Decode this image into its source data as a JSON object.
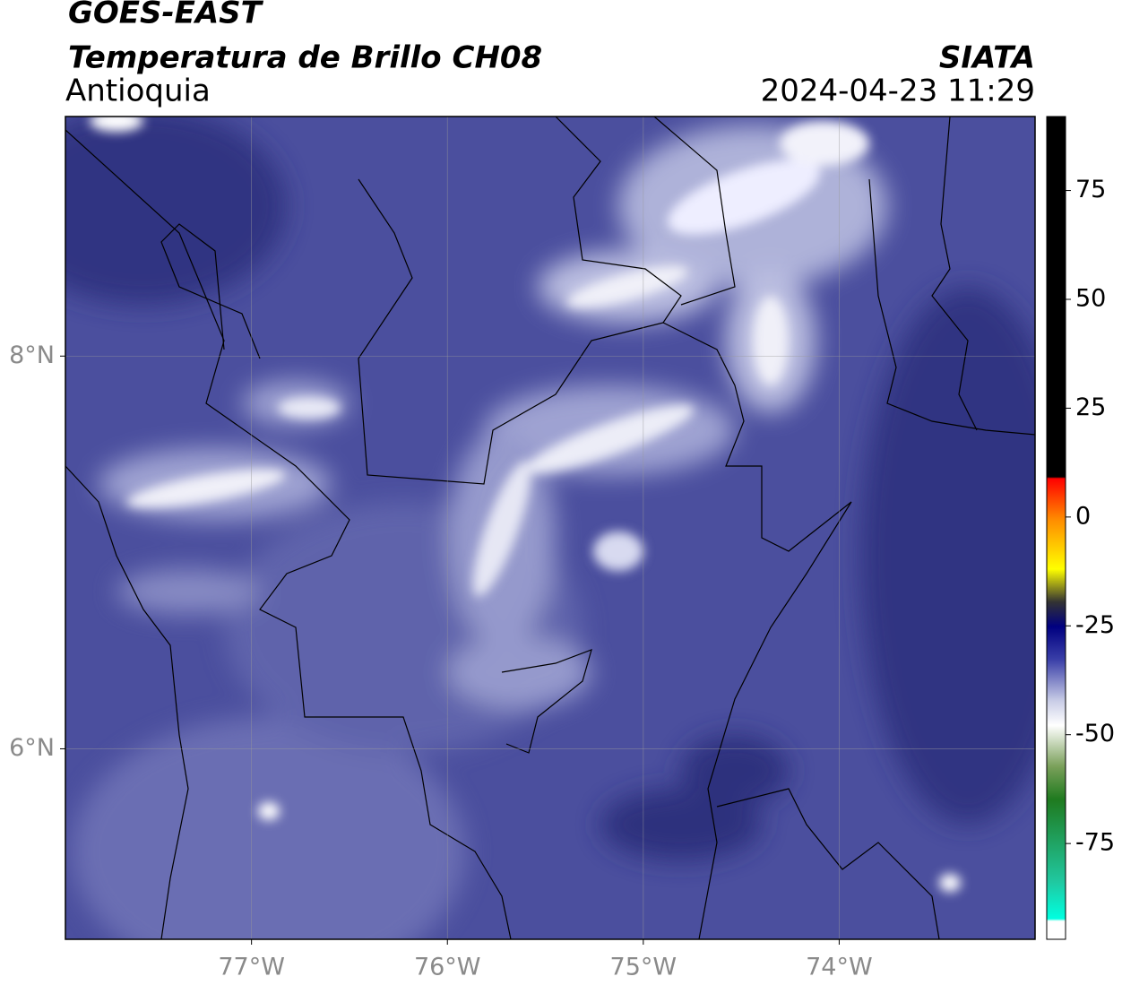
{
  "header": {
    "title": "GOES-EAST",
    "subtitle": "Temperatura de Brillo CH08",
    "region": "Antioquia",
    "agency": "SIATA",
    "timestamp": "2024-04-23 11:29"
  },
  "map": {
    "xlim": [
      -77.95,
      -73
    ],
    "ylim": [
      5.03,
      9.22
    ],
    "xticks": [
      {
        "value": -77,
        "label": "77°W"
      },
      {
        "value": -76,
        "label": "76°W"
      },
      {
        "value": -75,
        "label": "75°W"
      },
      {
        "value": -74,
        "label": "74°W"
      }
    ],
    "yticks": [
      {
        "value": 6,
        "label": "6°N"
      },
      {
        "value": 8,
        "label": "8°N"
      }
    ],
    "grid": true
  },
  "colorbar": {
    "lim": [
      -97,
      92
    ],
    "ticks": [
      75,
      50,
      25,
      0,
      -25,
      -50,
      -75
    ]
  }
}
